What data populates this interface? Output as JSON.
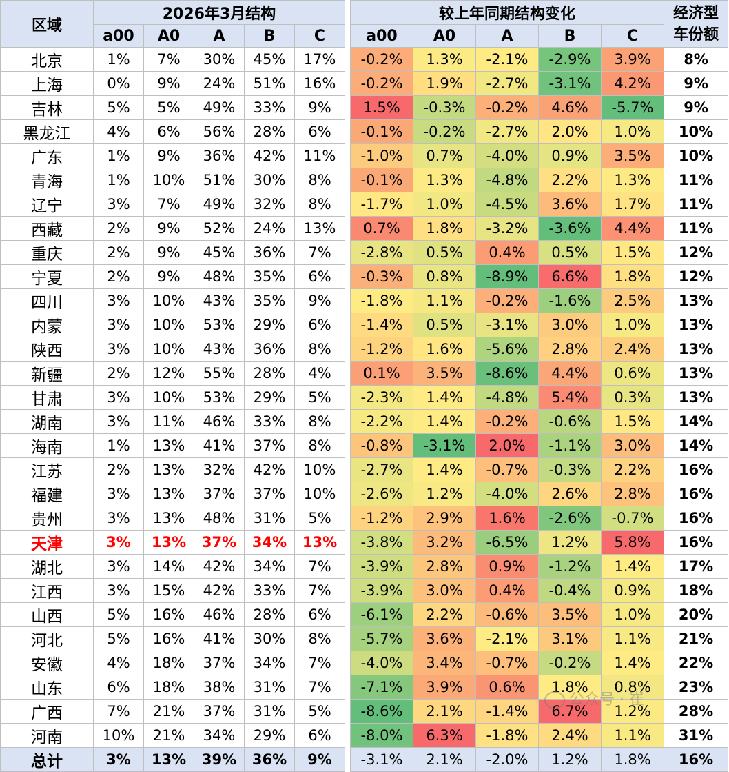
{
  "header": {
    "region": "区域",
    "group_structure": "2026年3月结构",
    "group_change": "较上年同期结构变化",
    "economy": "经济型\n车份额",
    "segments": [
      "a00",
      "A0",
      "A",
      "B",
      "C"
    ]
  },
  "watermark": "公众号 · 崔",
  "colors": {
    "header_bg": "#dae3f3",
    "highlight_text": "#ff0000",
    "scale_low": "#63be7b",
    "scale_mid": "#ffeb84",
    "scale_high": "#f8696b"
  },
  "chart_data": {
    "type": "table",
    "title": "2026年3月结构",
    "columns": [
      "区域",
      "a00",
      "A0",
      "A",
      "B",
      "C",
      "a00",
      "A0",
      "A",
      "B",
      "C",
      "经济型车份额"
    ],
    "highlight_row": "天津",
    "rows": [
      {
        "region": "北京",
        "structure": [
          "1%",
          "7%",
          "30%",
          "45%",
          "17%"
        ],
        "change": [
          "-0.2%",
          "1.3%",
          "-2.1%",
          "-2.9%",
          "3.9%"
        ],
        "economy": "8%"
      },
      {
        "region": "上海",
        "structure": [
          "0%",
          "9%",
          "24%",
          "51%",
          "16%"
        ],
        "change": [
          "-0.2%",
          "1.9%",
          "-2.7%",
          "-3.1%",
          "4.2%"
        ],
        "economy": "9%"
      },
      {
        "region": "吉林",
        "structure": [
          "5%",
          "5%",
          "49%",
          "33%",
          "9%"
        ],
        "change": [
          "1.5%",
          "-0.3%",
          "-0.2%",
          "4.6%",
          "-5.7%"
        ],
        "economy": "9%"
      },
      {
        "region": "黑龙江",
        "structure": [
          "4%",
          "6%",
          "56%",
          "28%",
          "6%"
        ],
        "change": [
          "-0.1%",
          "-0.2%",
          "-2.7%",
          "2.0%",
          "1.0%"
        ],
        "economy": "10%"
      },
      {
        "region": "广东",
        "structure": [
          "1%",
          "9%",
          "36%",
          "42%",
          "11%"
        ],
        "change": [
          "-1.0%",
          "0.7%",
          "-4.0%",
          "0.9%",
          "3.5%"
        ],
        "economy": "10%"
      },
      {
        "region": "青海",
        "structure": [
          "1%",
          "10%",
          "51%",
          "30%",
          "8%"
        ],
        "change": [
          "-0.1%",
          "1.3%",
          "-4.8%",
          "2.2%",
          "1.3%"
        ],
        "economy": "11%"
      },
      {
        "region": "辽宁",
        "structure": [
          "3%",
          "7%",
          "49%",
          "32%",
          "8%"
        ],
        "change": [
          "-1.7%",
          "1.0%",
          "-4.5%",
          "3.6%",
          "1.7%"
        ],
        "economy": "11%"
      },
      {
        "region": "西藏",
        "structure": [
          "2%",
          "9%",
          "52%",
          "24%",
          "13%"
        ],
        "change": [
          "0.7%",
          "1.8%",
          "-3.2%",
          "-3.6%",
          "4.4%"
        ],
        "economy": "11%"
      },
      {
        "region": "重庆",
        "structure": [
          "2%",
          "9%",
          "45%",
          "36%",
          "7%"
        ],
        "change": [
          "-2.8%",
          "0.5%",
          "0.4%",
          "0.5%",
          "1.5%"
        ],
        "economy": "12%"
      },
      {
        "region": "宁夏",
        "structure": [
          "2%",
          "9%",
          "48%",
          "35%",
          "6%"
        ],
        "change": [
          "-0.3%",
          "0.8%",
          "-8.9%",
          "6.6%",
          "1.8%"
        ],
        "economy": "12%"
      },
      {
        "region": "四川",
        "structure": [
          "3%",
          "10%",
          "43%",
          "35%",
          "9%"
        ],
        "change": [
          "-1.8%",
          "1.1%",
          "-0.2%",
          "-1.6%",
          "2.5%"
        ],
        "economy": "13%"
      },
      {
        "region": "内蒙",
        "structure": [
          "3%",
          "10%",
          "53%",
          "29%",
          "6%"
        ],
        "change": [
          "-1.4%",
          "0.5%",
          "-3.1%",
          "3.0%",
          "1.0%"
        ],
        "economy": "13%"
      },
      {
        "region": "陕西",
        "structure": [
          "3%",
          "10%",
          "43%",
          "36%",
          "8%"
        ],
        "change": [
          "-1.2%",
          "1.6%",
          "-5.6%",
          "2.8%",
          "2.4%"
        ],
        "economy": "13%"
      },
      {
        "region": "新疆",
        "structure": [
          "2%",
          "12%",
          "55%",
          "28%",
          "4%"
        ],
        "change": [
          "0.1%",
          "3.5%",
          "-8.6%",
          "4.4%",
          "0.6%"
        ],
        "economy": "13%"
      },
      {
        "region": "甘肃",
        "structure": [
          "3%",
          "10%",
          "53%",
          "29%",
          "5%"
        ],
        "change": [
          "-2.3%",
          "1.4%",
          "-4.8%",
          "5.4%",
          "0.3%"
        ],
        "economy": "13%"
      },
      {
        "region": "湖南",
        "structure": [
          "3%",
          "11%",
          "46%",
          "33%",
          "8%"
        ],
        "change": [
          "-2.2%",
          "1.4%",
          "-0.2%",
          "-0.6%",
          "1.5%"
        ],
        "economy": "14%"
      },
      {
        "region": "海南",
        "structure": [
          "1%",
          "13%",
          "41%",
          "37%",
          "8%"
        ],
        "change": [
          "-0.8%",
          "-3.1%",
          "2.0%",
          "-1.1%",
          "3.0%"
        ],
        "economy": "14%"
      },
      {
        "region": "江苏",
        "structure": [
          "2%",
          "13%",
          "32%",
          "42%",
          "10%"
        ],
        "change": [
          "-2.7%",
          "1.4%",
          "-0.7%",
          "-0.3%",
          "2.2%"
        ],
        "economy": "16%"
      },
      {
        "region": "福建",
        "structure": [
          "3%",
          "13%",
          "37%",
          "37%",
          "10%"
        ],
        "change": [
          "-2.6%",
          "1.2%",
          "-4.0%",
          "2.6%",
          "2.8%"
        ],
        "economy": "16%"
      },
      {
        "region": "贵州",
        "structure": [
          "3%",
          "13%",
          "48%",
          "31%",
          "5%"
        ],
        "change": [
          "-1.2%",
          "2.9%",
          "1.6%",
          "-2.6%",
          "-0.7%"
        ],
        "economy": "16%"
      },
      {
        "region": "天津",
        "structure": [
          "3%",
          "13%",
          "37%",
          "34%",
          "13%"
        ],
        "change": [
          "-3.8%",
          "3.2%",
          "-6.5%",
          "1.2%",
          "5.8%"
        ],
        "economy": "16%"
      },
      {
        "region": "湖北",
        "structure": [
          "3%",
          "14%",
          "42%",
          "34%",
          "7%"
        ],
        "change": [
          "-3.9%",
          "2.8%",
          "0.9%",
          "-1.2%",
          "1.4%"
        ],
        "economy": "17%"
      },
      {
        "region": "江西",
        "structure": [
          "3%",
          "15%",
          "42%",
          "33%",
          "7%"
        ],
        "change": [
          "-3.9%",
          "3.0%",
          "0.4%",
          "-0.4%",
          "0.9%"
        ],
        "economy": "18%"
      },
      {
        "region": "山西",
        "structure": [
          "5%",
          "16%",
          "46%",
          "28%",
          "6%"
        ],
        "change": [
          "-6.1%",
          "2.2%",
          "-0.6%",
          "3.5%",
          "1.0%"
        ],
        "economy": "20%"
      },
      {
        "region": "河北",
        "structure": [
          "5%",
          "16%",
          "41%",
          "30%",
          "8%"
        ],
        "change": [
          "-5.7%",
          "3.6%",
          "-2.1%",
          "3.1%",
          "1.1%"
        ],
        "economy": "21%"
      },
      {
        "region": "安徽",
        "structure": [
          "4%",
          "18%",
          "37%",
          "34%",
          "7%"
        ],
        "change": [
          "-4.0%",
          "3.4%",
          "-0.7%",
          "-0.2%",
          "1.4%"
        ],
        "economy": "22%"
      },
      {
        "region": "山东",
        "structure": [
          "6%",
          "18%",
          "38%",
          "31%",
          "7%"
        ],
        "change": [
          "-7.1%",
          "3.9%",
          "0.6%",
          "1.8%",
          "0.8%"
        ],
        "economy": "23%"
      },
      {
        "region": "广西",
        "structure": [
          "7%",
          "21%",
          "37%",
          "31%",
          "5%"
        ],
        "change": [
          "-8.6%",
          "2.1%",
          "-1.4%",
          "6.7%",
          "1.2%"
        ],
        "economy": "28%"
      },
      {
        "region": "河南",
        "structure": [
          "10%",
          "21%",
          "34%",
          "29%",
          "6%"
        ],
        "change": [
          "-8.0%",
          "6.3%",
          "-1.8%",
          "2.4%",
          "1.1%"
        ],
        "economy": "31%"
      }
    ],
    "total": {
      "region": "总计",
      "structure": [
        "3%",
        "13%",
        "39%",
        "36%",
        "9%"
      ],
      "change": [
        "-3.1%",
        "2.1%",
        "-2.0%",
        "1.2%",
        "1.8%"
      ],
      "economy": "16%"
    }
  }
}
